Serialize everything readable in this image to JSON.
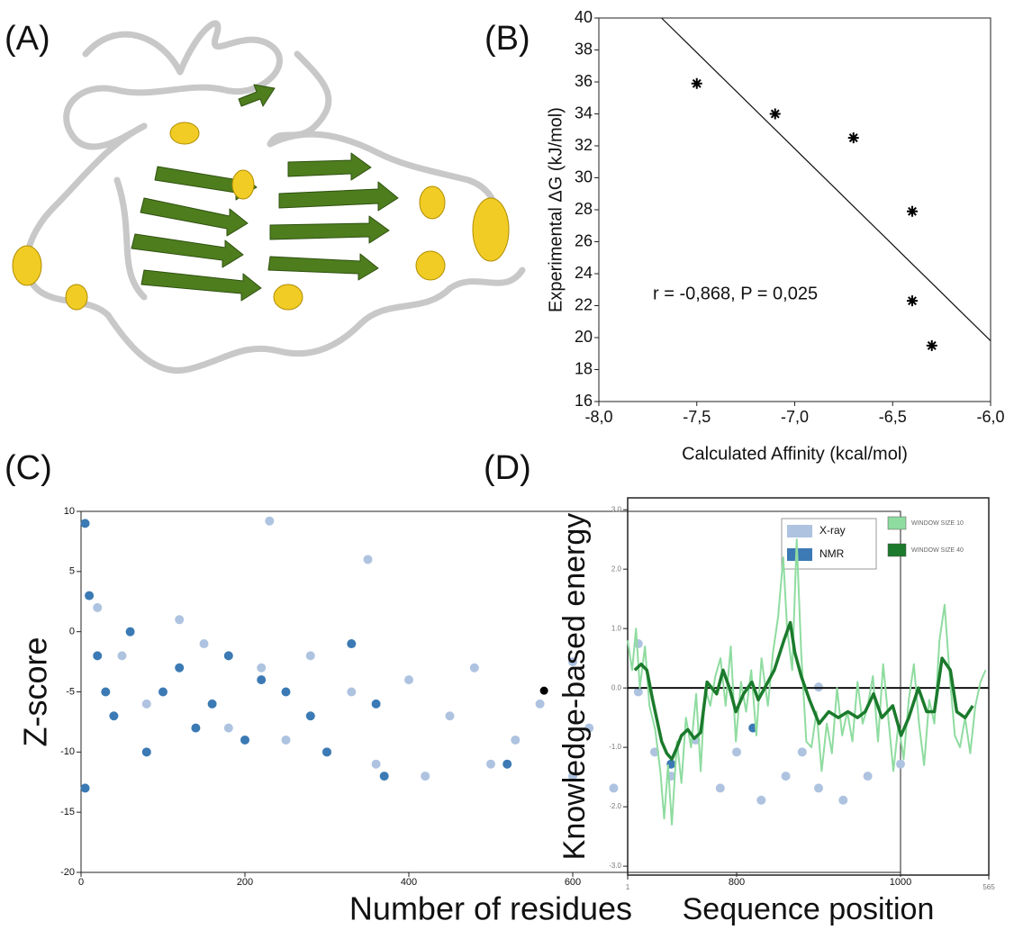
{
  "panel_labels": [
    "(A)",
    "(B)",
    "(C)",
    "(D)"
  ],
  "chart_data": [
    {
      "type": "scatter",
      "marker": "asterisk",
      "color": "#000000",
      "xlabel": "Calculated Affinity (kcal/mol)",
      "ylabel": "Experimental ΔG (kJ/mol)",
      "annotation": "r = -0,868, P = 0,025",
      "x": [
        -7.5,
        -7.1,
        -6.7,
        -6.4,
        -6.4,
        -6.3
      ],
      "values": [
        35.9,
        34.0,
        32.5,
        27.9,
        22.3,
        19.5
      ],
      "fit_line": {
        "x": [
          -7.68,
          -6.0
        ],
        "y": [
          40,
          19.8
        ]
      },
      "xlim": [
        -8,
        -6
      ],
      "xticks": [
        {
          "value": -8,
          "label": "-8,0"
        },
        {
          "value": -7.5,
          "label": "-7,5"
        },
        {
          "value": -7,
          "label": "-7,0"
        },
        {
          "value": -6.5,
          "label": "-6,5"
        },
        {
          "value": -6,
          "label": "-6,0"
        }
      ],
      "ylim": [
        16,
        40
      ],
      "yticks": [
        16,
        18,
        20,
        22,
        24,
        26,
        28,
        30,
        32,
        34,
        36,
        38,
        40
      ]
    },
    {
      "type": "scatter",
      "marker": "circle",
      "legend": "upper right",
      "xlabel": "Number of residues",
      "ylabel": "Z-score",
      "series": [
        {
          "name": "X-ray",
          "color": "#aec3e0",
          "x": [
            20,
            50,
            80,
            120,
            150,
            180,
            220,
            250,
            280,
            300,
            330,
            360,
            400,
            420,
            450,
            480,
            500,
            530,
            560,
            600,
            620,
            650,
            680,
            700,
            720,
            750,
            780,
            800,
            830,
            860,
            880,
            900,
            930,
            960,
            1000,
            230,
            600,
            900,
            350,
            680
          ],
          "values": [
            2,
            -2,
            -6,
            1,
            -1,
            -8,
            -3,
            -9,
            -2,
            -10,
            -5,
            -11,
            -4,
            -12,
            -7,
            -3,
            -11,
            -9,
            -6,
            -12,
            -8,
            -13,
            -5,
            -10,
            -12,
            -9,
            -13,
            -10,
            -14,
            -12,
            -10,
            -13,
            -14,
            -12,
            -11,
            9.2,
            -2.5,
            -4.6,
            6,
            -1
          ]
        },
        {
          "name": "NMR",
          "color": "#3b7ab4",
          "x": [
            5,
            10,
            20,
            40,
            60,
            80,
            100,
            120,
            140,
            160,
            180,
            200,
            220,
            250,
            280,
            300,
            330,
            360,
            370,
            520,
            720,
            820,
            5,
            30
          ],
          "values": [
            9,
            3,
            -2,
            -7,
            0,
            -10,
            -5,
            -3,
            -8,
            -6,
            -2,
            -9,
            -4,
            -5,
            -7,
            -10,
            -1,
            -6,
            -12,
            -11,
            -11,
            -8,
            -13,
            -5
          ]
        }
      ],
      "highlight": {
        "x": 565,
        "y": -4.9,
        "color": "#000000"
      },
      "xlim": [
        0,
        1000
      ],
      "xticks": [
        0,
        200,
        400,
        600,
        800,
        1000
      ],
      "ylim": [
        -20,
        10
      ],
      "yticks": [
        -20,
        -15,
        -10,
        -5,
        0,
        5,
        10
      ]
    },
    {
      "type": "line",
      "legend": "upper right",
      "hline": 0,
      "xlabel": "Sequence position",
      "ylabel": "Knowledge-based energy",
      "series": [
        {
          "name": "WINDOW SIZE 10",
          "color": "#8fdca0",
          "x": [
            1,
            8,
            14,
            20,
            28,
            35,
            44,
            52,
            58,
            64,
            70,
            78,
            85,
            92,
            100,
            108,
            115,
            122,
            130,
            138,
            146,
            154,
            162,
            170,
            178,
            186,
            194,
            202,
            210,
            220,
            228,
            236,
            244,
            250,
            258,
            265,
            272,
            280,
            288,
            296,
            304,
            312,
            320,
            328,
            336,
            344,
            352,
            360,
            368,
            376,
            384,
            392,
            400,
            408,
            416,
            424,
            432,
            440,
            448,
            456,
            464,
            472,
            480,
            488,
            496,
            504,
            512,
            520,
            528,
            536,
            544,
            552,
            560
          ],
          "values": [
            0.8,
            0.3,
            1.0,
            0.0,
            0.7,
            -0.3,
            -0.7,
            -1.4,
            -2.2,
            -1.3,
            -2.3,
            -0.9,
            -1.6,
            -0.5,
            -1.0,
            -0.1,
            -1.4,
            0.0,
            -0.3,
            0.2,
            0.5,
            -0.3,
            0.7,
            -0.9,
            0.1,
            -0.4,
            0.3,
            -0.8,
            0.5,
            -0.3,
            0.6,
            1.2,
            2.2,
            1.0,
            0.3,
            2.5,
            0.6,
            -0.9,
            -1.0,
            -0.4,
            -1.4,
            -0.6,
            -1.1,
            0.0,
            -0.8,
            -0.4,
            -0.9,
            0.1,
            -0.6,
            -0.3,
            0.2,
            -0.9,
            0.4,
            -0.5,
            -1.4,
            -0.6,
            -1.2,
            -0.2,
            0.4,
            -0.6,
            -1.3,
            -0.2,
            -0.6,
            0.8,
            1.4,
            0.2,
            -0.8,
            -1.0,
            -0.5,
            -1.1,
            -0.3,
            0.1,
            0.3
          ]
        },
        {
          "name": "WINDOW SIZE 40",
          "color": "#1b7a2c",
          "x": [
            12,
            22,
            31,
            40,
            54,
            62,
            70,
            78,
            85,
            95,
            105,
            115,
            125,
            140,
            150,
            160,
            170,
            182,
            195,
            205,
            215,
            230,
            245,
            255,
            262,
            272,
            285,
            300,
            315,
            330,
            345,
            360,
            372,
            385,
            398,
            415,
            428,
            440,
            455,
            468,
            480,
            492,
            505,
            515,
            528,
            540
          ],
          "values": [
            0.3,
            0.4,
            0.3,
            -0.2,
            -0.9,
            -1.1,
            -1.2,
            -1.0,
            -0.8,
            -0.7,
            -0.85,
            -0.75,
            0.1,
            -0.1,
            0.3,
            0.0,
            -0.4,
            -0.1,
            0.1,
            -0.2,
            0.0,
            0.3,
            0.8,
            1.1,
            0.6,
            0.2,
            -0.2,
            -0.6,
            -0.4,
            -0.5,
            -0.4,
            -0.5,
            -0.4,
            -0.1,
            -0.5,
            -0.3,
            -0.8,
            -0.5,
            0.0,
            -0.4,
            -0.4,
            0.5,
            0.3,
            -0.4,
            -0.5,
            -0.3
          ]
        }
      ],
      "xlim": [
        1,
        565
      ],
      "xticks": [
        1,
        565
      ],
      "ylim": [
        -3.15,
        3.2
      ],
      "yticks": [
        {
          "value": 3,
          "label": "3.0"
        },
        {
          "value": 2,
          "label": "2.0"
        },
        {
          "value": 1,
          "label": "1.0"
        },
        {
          "value": 0,
          "label": "0.0"
        },
        {
          "value": -1,
          "label": "-1.0"
        },
        {
          "value": -2,
          "label": "-2.0"
        },
        {
          "value": -3,
          "label": "-3.0"
        }
      ]
    }
  ]
}
